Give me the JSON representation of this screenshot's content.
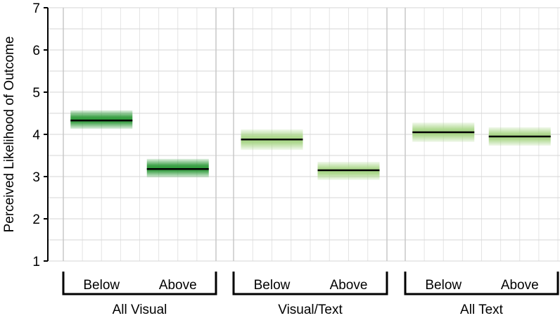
{
  "chart_data": {
    "type": "bar",
    "title": "",
    "ylabel": "Perceived Likelihood of Outcome",
    "xlabel": "",
    "ylim": [
      1,
      7
    ],
    "yticks": [
      1,
      2,
      3,
      4,
      5,
      6,
      7
    ],
    "grid": true,
    "groups": [
      {
        "name": "All Visual",
        "color": "#2e9a3a",
        "bars": [
          {
            "category": "Below",
            "mean": 4.33,
            "low": 4.13,
            "high": 4.57
          },
          {
            "category": "Above",
            "mean": 3.18,
            "low": 2.98,
            "high": 3.42
          }
        ]
      },
      {
        "name": "Visual/Text",
        "color": "#a7d585",
        "bars": [
          {
            "category": "Below",
            "mean": 3.88,
            "low": 3.63,
            "high": 4.12
          },
          {
            "category": "Above",
            "mean": 3.15,
            "low": 2.92,
            "high": 3.35
          }
        ]
      },
      {
        "name": "All Text",
        "color": "#a7d585",
        "bars": [
          {
            "category": "Below",
            "mean": 4.05,
            "low": 3.82,
            "high": 4.28
          },
          {
            "category": "Above",
            "mean": 3.95,
            "low": 3.73,
            "high": 4.17
          }
        ]
      }
    ]
  }
}
